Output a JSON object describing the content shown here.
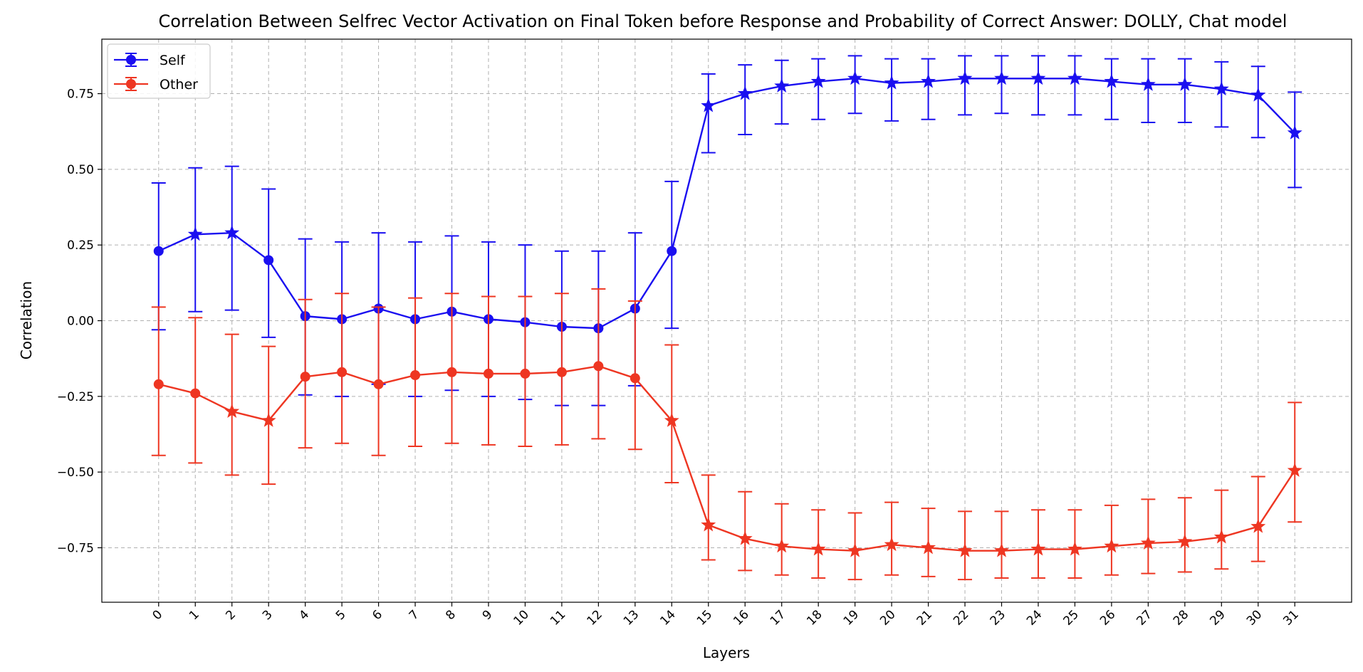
{
  "chart_data": {
    "type": "line",
    "title": "Correlation Between Selfrec Vector Activation on Final Token before Response and Probability of Correct Answer: DOLLY, Chat model",
    "xlabel": "Layers",
    "ylabel": "Correlation",
    "x": [
      0,
      1,
      2,
      3,
      4,
      5,
      6,
      7,
      8,
      9,
      10,
      11,
      12,
      13,
      14,
      15,
      16,
      17,
      18,
      19,
      20,
      21,
      22,
      23,
      24,
      25,
      26,
      27,
      28,
      29,
      30,
      31
    ],
    "x_tick_labels": [
      "0",
      "1",
      "2",
      "3",
      "4",
      "5",
      "6",
      "7",
      "8",
      "9",
      "10",
      "11",
      "12",
      "13",
      "14",
      "15",
      "16",
      "17",
      "18",
      "19",
      "20",
      "21",
      "22",
      "23",
      "24",
      "25",
      "26",
      "27",
      "28",
      "29",
      "30",
      "31"
    ],
    "y_ticks": [
      -0.75,
      -0.5,
      -0.25,
      0.0,
      0.25,
      0.5,
      0.75
    ],
    "y_tick_labels": [
      "−0.75",
      "−0.50",
      "−0.25",
      "0.00",
      "0.25",
      "0.50",
      "0.75"
    ],
    "ylim": [
      -0.93,
      0.93
    ],
    "xlim": [
      -1.55,
      32.55
    ],
    "grid": true,
    "legend_position": "upper-left",
    "series": [
      {
        "name": "Self",
        "color": "#1a0ff0",
        "values": [
          0.23,
          0.285,
          0.29,
          0.2,
          0.015,
          0.005,
          0.04,
          0.005,
          0.03,
          0.005,
          -0.005,
          -0.02,
          -0.025,
          0.04,
          0.23,
          0.71,
          0.75,
          0.775,
          0.79,
          0.8,
          0.785,
          0.79,
          0.8,
          0.8,
          0.8,
          0.8,
          0.79,
          0.78,
          0.78,
          0.765,
          0.745,
          0.62
        ],
        "error_upper": [
          0.455,
          0.505,
          0.51,
          0.435,
          0.27,
          0.26,
          0.29,
          0.26,
          0.28,
          0.26,
          0.25,
          0.23,
          0.23,
          0.29,
          0.46,
          0.815,
          0.845,
          0.86,
          0.865,
          0.875,
          0.865,
          0.865,
          0.875,
          0.875,
          0.875,
          0.875,
          0.865,
          0.865,
          0.865,
          0.855,
          0.84,
          0.755
        ],
        "error_lower": [
          -0.03,
          0.03,
          0.035,
          -0.055,
          -0.245,
          -0.25,
          -0.21,
          -0.25,
          -0.23,
          -0.25,
          -0.26,
          -0.28,
          -0.28,
          -0.215,
          -0.025,
          0.555,
          0.615,
          0.65,
          0.665,
          0.685,
          0.66,
          0.665,
          0.68,
          0.685,
          0.68,
          0.68,
          0.665,
          0.655,
          0.655,
          0.64,
          0.605,
          0.44
        ],
        "markers": [
          "circle",
          "star",
          "star",
          "circle",
          "circle",
          "circle",
          "circle",
          "circle",
          "circle",
          "circle",
          "circle",
          "circle",
          "circle",
          "circle",
          "circle",
          "star",
          "star",
          "star",
          "star",
          "star",
          "star",
          "star",
          "star",
          "star",
          "star",
          "star",
          "star",
          "star",
          "star",
          "star",
          "star",
          "star"
        ]
      },
      {
        "name": "Other",
        "color": "#ee3622",
        "values": [
          -0.21,
          -0.24,
          -0.3,
          -0.33,
          -0.185,
          -0.17,
          -0.21,
          -0.18,
          -0.17,
          -0.175,
          -0.175,
          -0.17,
          -0.15,
          -0.19,
          -0.33,
          -0.675,
          -0.72,
          -0.745,
          -0.755,
          -0.76,
          -0.74,
          -0.75,
          -0.76,
          -0.76,
          -0.755,
          -0.755,
          -0.745,
          -0.735,
          -0.73,
          -0.715,
          -0.68,
          -0.495
        ],
        "error_upper": [
          0.045,
          0.01,
          -0.045,
          -0.085,
          0.07,
          0.09,
          0.045,
          0.075,
          0.09,
          0.08,
          0.08,
          0.09,
          0.105,
          0.065,
          -0.08,
          -0.51,
          -0.565,
          -0.605,
          -0.625,
          -0.635,
          -0.6,
          -0.62,
          -0.63,
          -0.63,
          -0.625,
          -0.625,
          -0.61,
          -0.59,
          -0.585,
          -0.56,
          -0.515,
          -0.27
        ],
        "error_lower": [
          -0.445,
          -0.47,
          -0.51,
          -0.54,
          -0.42,
          -0.405,
          -0.445,
          -0.415,
          -0.405,
          -0.41,
          -0.415,
          -0.41,
          -0.39,
          -0.425,
          -0.535,
          -0.79,
          -0.825,
          -0.84,
          -0.85,
          -0.855,
          -0.84,
          -0.845,
          -0.855,
          -0.85,
          -0.85,
          -0.85,
          -0.84,
          -0.835,
          -0.83,
          -0.82,
          -0.795,
          -0.665
        ],
        "markers": [
          "circle",
          "circle",
          "star",
          "star",
          "circle",
          "circle",
          "circle",
          "circle",
          "circle",
          "circle",
          "circle",
          "circle",
          "circle",
          "circle",
          "star",
          "star",
          "star",
          "star",
          "star",
          "star",
          "star",
          "star",
          "star",
          "star",
          "star",
          "star",
          "star",
          "star",
          "star",
          "star",
          "star",
          "star"
        ]
      }
    ]
  }
}
